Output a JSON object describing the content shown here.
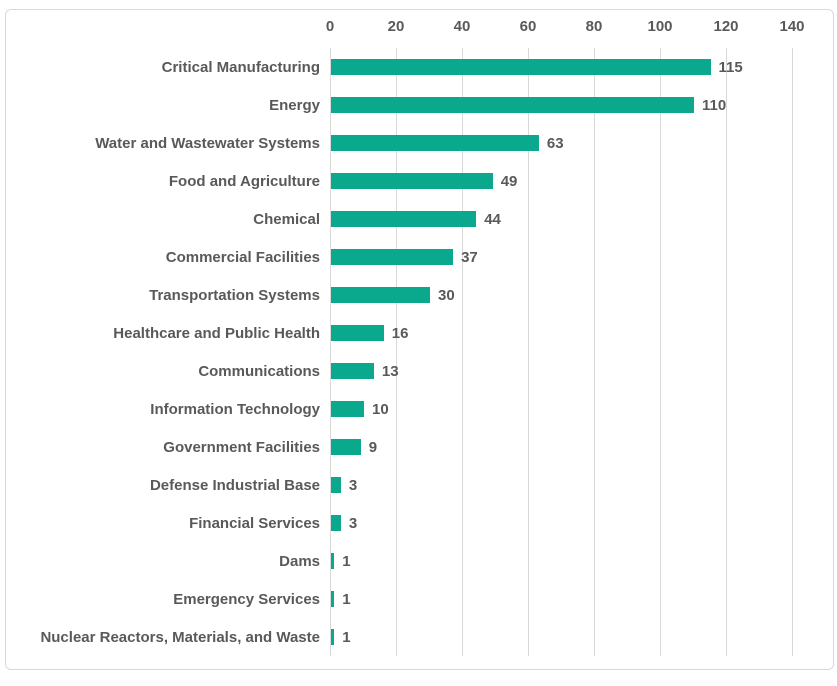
{
  "chart_data": {
    "type": "bar",
    "orientation": "horizontal",
    "title": "",
    "xlabel": "",
    "ylabel": "",
    "categories": [
      "Critical Manufacturing",
      "Energy",
      "Water and Wastewater Systems",
      "Food and Agriculture",
      "Chemical",
      "Commercial Facilities",
      "Transportation Systems",
      "Healthcare and Public Health",
      "Communications",
      "Information Technology",
      "Government Facilities",
      "Defense Industrial Base",
      "Financial Services",
      "Dams",
      "Emergency Services",
      "Nuclear Reactors, Materials, and Waste"
    ],
    "values": [
      115,
      110,
      63,
      49,
      44,
      37,
      30,
      16,
      13,
      10,
      9,
      3,
      3,
      1,
      1,
      1
    ],
    "xlim": [
      0,
      140
    ],
    "xticks": [
      0,
      20,
      40,
      60,
      80,
      100,
      120,
      140
    ],
    "grid": "vertical",
    "legend": "none",
    "axis_position": "top",
    "colors": {
      "bar": "#0aa88c",
      "grid": "#d9d9d9",
      "text": "#595959",
      "frame_border": "#d9d9d9",
      "background": "#ffffff"
    }
  }
}
